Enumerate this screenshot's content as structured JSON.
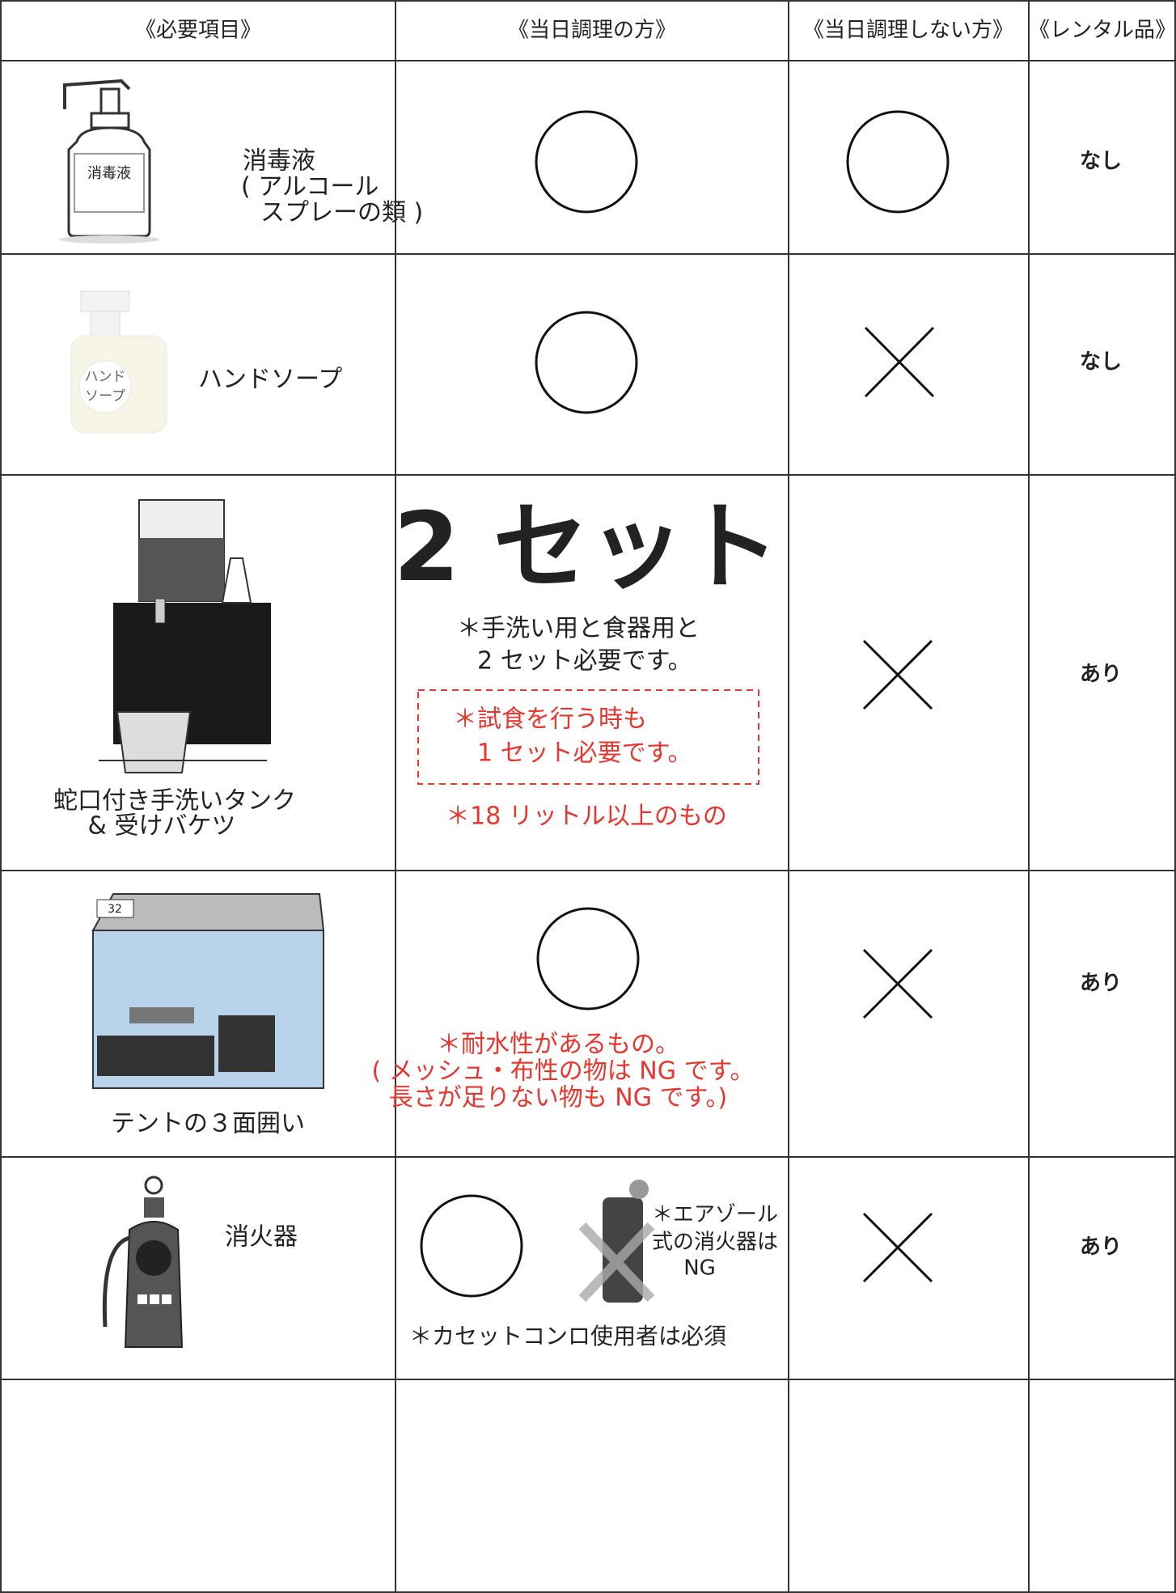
{
  "table": {
    "header": [
      "《必要項目》",
      "《当日調理の方》",
      "《当日調理しない方》",
      "《レンタル品》"
    ],
    "rows": [
      {
        "image_label": "消毒液",
        "item": [
          "消毒液",
          "( アルコール",
          "スプレーの類 )"
        ],
        "rental": "なし"
      },
      {
        "image_label": [
          "ハンド",
          "ソープ"
        ],
        "item": [
          "ハンドソープ"
        ],
        "rental": "なし"
      },
      {
        "item": [
          "蛇口付き手洗いタンク",
          "& 受けバケツ"
        ],
        "cooking": {
          "heading": "2 セット",
          "notes": [
            "＊手洗い用と食器用と",
            "2 セット必要です。"
          ],
          "boxed": [
            "＊試食を行う時も",
            "1 セット必要です。"
          ],
          "red_note": "＊18 リットル以上のもの"
        },
        "rental": "あり"
      },
      {
        "image_label": "32",
        "item": [
          "テントの３面囲い"
        ],
        "cooking": {
          "notes": [
            "＊耐水性があるもの。",
            "( メッシュ・布性の物は NG です。",
            "長さが足りない物も NG です。)"
          ]
        },
        "rental": "あり"
      },
      {
        "item": [
          "消火器"
        ],
        "cooking": {
          "aerosol_note": [
            "＊エアゾール",
            "式の消火器は",
            "NG"
          ],
          "note": "＊カセットコンロ使用者は必須"
        },
        "rental": "あり"
      }
    ]
  }
}
